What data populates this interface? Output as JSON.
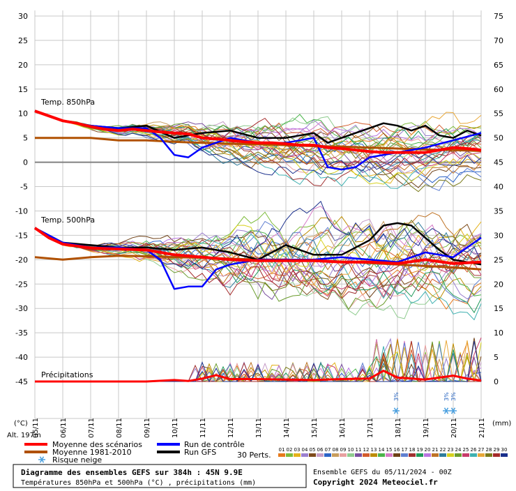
{
  "chart_data": {
    "type": "line",
    "title": "Diagramme des ensembles GEFS sur 384h : 45N 9.9E",
    "subtitle": "Températures 850hPa et 500hPa (°C) , précipitations (mm)",
    "left_axis": {
      "unit_label": "(°C)",
      "ticks": [
        30,
        25,
        20,
        15,
        10,
        5,
        0,
        -5,
        -10,
        -15,
        -20,
        -25,
        -30,
        -35,
        -40,
        -45
      ],
      "ylim": [
        -45,
        30
      ]
    },
    "right_axis": {
      "unit_label": "(mm)",
      "ticks": [
        75,
        70,
        65,
        60,
        55,
        50,
        45,
        40,
        35,
        30,
        25,
        20,
        15,
        10,
        5,
        0
      ],
      "ylim": [
        0,
        75
      ]
    },
    "altitude_label": "Alt. 197m",
    "x_ticks": [
      "05/11",
      "06/11",
      "07/11",
      "08/11",
      "09/11",
      "10/11",
      "11/11",
      "12/11",
      "13/11",
      "14/11",
      "15/11",
      "16/11",
      "17/11",
      "18/11",
      "19/11",
      "20/11",
      "21/11"
    ],
    "panel_labels": {
      "t850": "Temp. 850hPa",
      "t500": "Temp. 500hPa",
      "precip": "Précipitations"
    },
    "grid": true,
    "snow_risk": [
      {
        "day": 12.95,
        "label": "3%"
      },
      {
        "day": 14.75,
        "label": "3%"
      },
      {
        "day": 15.0,
        "label": "3%"
      }
    ],
    "series": {
      "t850_mean": {
        "name": "Moyenne des scénarios",
        "color": "#ff0000",
        "x": [
          0,
          0.5,
          1,
          1.5,
          2,
          2.5,
          3,
          3.5,
          4,
          4.5,
          5,
          5.5,
          6,
          6.5,
          7,
          7.5,
          8,
          8.5,
          9,
          9.5,
          10,
          10.5,
          11,
          11.5,
          12,
          12.5,
          13,
          13.5,
          14,
          14.5,
          15,
          15.5,
          16
        ],
        "y": [
          10.5,
          9.5,
          8.5,
          8,
          7.3,
          6.8,
          6.5,
          6.8,
          6.5,
          6.2,
          6,
          5.8,
          5,
          4.8,
          4.5,
          4.2,
          4,
          4,
          3.8,
          3.5,
          3.5,
          3,
          2.8,
          2.5,
          2.2,
          2,
          2,
          2,
          2,
          2.5,
          3,
          2.8,
          2.5
        ]
      },
      "t850_clim": {
        "name": "Moyenne 1981-2010",
        "color": "#b05000",
        "x": [
          0,
          1,
          2,
          3,
          4,
          5,
          6,
          7,
          8,
          9,
          10,
          11,
          12,
          13,
          14,
          15,
          16
        ],
        "y": [
          5,
          5,
          5,
          4.5,
          4.5,
          4.2,
          4,
          3.8,
          3.7,
          3.5,
          3.3,
          3.2,
          3,
          2.8,
          2.6,
          2.5,
          2.3
        ]
      },
      "t850_control": {
        "name": "Run de contrôle",
        "color": "#0000ff",
        "x": [
          0,
          1,
          2,
          3,
          4,
          4.5,
          5,
          5.5,
          6,
          7,
          8,
          9,
          10,
          10.5,
          11,
          11.5,
          12,
          13,
          14,
          15,
          16
        ],
        "y": [
          10.5,
          8.5,
          7.5,
          7,
          7,
          5,
          1.5,
          1,
          3,
          5,
          4,
          4,
          5,
          -1,
          -1.5,
          -1,
          1,
          2,
          3,
          4.5,
          6
        ]
      },
      "t850_gfs": {
        "name": "Run GFS",
        "color": "#000000",
        "x": [
          0,
          1,
          2,
          3,
          4,
          5,
          6,
          7,
          8,
          9,
          10,
          10.5,
          11,
          11.5,
          12,
          12.5,
          13,
          13.5,
          14,
          14.5,
          15,
          15.5,
          16
        ],
        "y": [
          10.5,
          8.5,
          7.5,
          7,
          7.5,
          5,
          6,
          6.5,
          5,
          5,
          6,
          4,
          5,
          6,
          7,
          8,
          7.5,
          6.5,
          7.5,
          5.5,
          5,
          6.5,
          5.5
        ]
      },
      "t500_mean": {
        "name": "Moyenne des scénarios",
        "color": "#ff0000",
        "x": [
          0,
          0.5,
          1,
          1.5,
          2,
          3,
          4,
          5,
          6,
          7,
          8,
          9,
          10,
          11,
          12,
          13,
          14,
          15,
          16
        ],
        "y": [
          -13.5,
          -15.5,
          -16.8,
          -17.2,
          -17.6,
          -17.8,
          -18,
          -19,
          -19.5,
          -20,
          -20.2,
          -20.2,
          -20.2,
          -20.5,
          -20.5,
          -20.8,
          -20,
          -20.8,
          -20.5
        ]
      },
      "t500_clim": {
        "name": "Moyenne 1981-2010",
        "color": "#b05000",
        "x": [
          0,
          1,
          2,
          3,
          4,
          5,
          6,
          7,
          8,
          9,
          10,
          11,
          12,
          13,
          14,
          15,
          16
        ],
        "y": [
          -19.5,
          -20,
          -19.5,
          -19.2,
          -19.3,
          -19.5,
          -19.6,
          -19.8,
          -20,
          -20,
          -20.2,
          -20.4,
          -20.7,
          -21,
          -21.3,
          -21.6,
          -22
        ]
      },
      "t500_control": {
        "name": "Run de contrôle",
        "color": "#0000ff",
        "x": [
          0,
          1,
          2,
          3,
          4,
          4.5,
          5,
          5.5,
          6,
          6.5,
          7,
          8,
          9,
          10,
          11,
          12,
          13,
          14,
          15,
          16
        ],
        "y": [
          -13.5,
          -16.5,
          -17.5,
          -17.5,
          -18,
          -20,
          -26,
          -25.5,
          -25.5,
          -22,
          -21,
          -20,
          -20,
          -20,
          -19.5,
          -20,
          -20.5,
          -18.5,
          -19.5,
          -15.5
        ]
      },
      "t500_gfs": {
        "name": "Run GFS",
        "color": "#000000",
        "x": [
          0,
          1,
          2,
          3,
          4,
          5,
          6,
          7,
          8,
          9,
          10,
          11,
          12,
          12.5,
          13,
          13.5,
          14,
          14.5,
          15,
          15.5,
          16
        ],
        "y": [
          -13.5,
          -16.5,
          -17,
          -17.5,
          -17.5,
          -18,
          -17.5,
          -18.5,
          -20,
          -17,
          -19,
          -19,
          -16,
          -13,
          -12.5,
          -13,
          -15.5,
          -18,
          -20,
          -20.5,
          -21
        ]
      },
      "precip_mean": {
        "name": "Moyenne des scénarios",
        "color": "#ff0000",
        "x": [
          0,
          1,
          2,
          3,
          4,
          5,
          5.5,
          6,
          6.5,
          7,
          8,
          9,
          10,
          11,
          12,
          12.5,
          13,
          13.5,
          14,
          14.5,
          15,
          15.5,
          16
        ],
        "y": [
          0,
          0,
          0,
          0,
          0,
          0.3,
          0.1,
          0.6,
          1.3,
          0.5,
          0.5,
          0.4,
          0.3,
          0.5,
          0.6,
          2.2,
          0.8,
          0.6,
          0.4,
          0.8,
          1.2,
          0.6,
          0.2
        ]
      }
    },
    "members_count_label": "30 Perts.",
    "member_ids": [
      "01",
      "02",
      "03",
      "04",
      "05",
      "06",
      "07",
      "08",
      "09",
      "10",
      "11",
      "12",
      "13",
      "14",
      "15",
      "16",
      "17",
      "18",
      "19",
      "20",
      "21",
      "22",
      "23",
      "24",
      "25",
      "26",
      "27",
      "28",
      "29",
      "30"
    ],
    "member_colors": [
      "#e77a1c",
      "#7dbb3a",
      "#e4b21a",
      "#9b7fcf",
      "#7e4b1b",
      "#c59cc6",
      "#2b64c7",
      "#c89d5d",
      "#e8a0a0",
      "#8fcc8f",
      "#7a4fa0",
      "#d45b2c",
      "#bd8c00",
      "#4bb44b",
      "#d67ac6",
      "#6e4017",
      "#5f7fd0",
      "#a03030",
      "#1f9a5a",
      "#b874e0",
      "#be7326",
      "#2e7c9c",
      "#d6d11e",
      "#6a9c2d",
      "#c73a6a",
      "#3fb0b0",
      "#e9a838",
      "#7b7b1b",
      "#a52a2a",
      "#1a2f8c"
    ]
  },
  "legend": {
    "mean": "Moyenne des scénarios",
    "clim": "Moyenne 1981-2010",
    "snow": "Risque neige",
    "control": "Run de contrôle",
    "gfs": "Run GFS",
    "colors": {
      "mean": "#ff0000",
      "clim": "#b05000",
      "control": "#0000ff",
      "gfs": "#000000",
      "snow": "#4aa0e0"
    }
  },
  "footer": {
    "title": "Diagramme des ensembles GEFS sur 384h : 45N 9.9E",
    "subtitle": "Températures 850hPa et 500hPa (°C) , précipitations (mm)",
    "run_info": "Ensemble GEFS du 05/11/2024 - 00Z",
    "copyright": "Copyright 2024 Meteociel.fr"
  }
}
